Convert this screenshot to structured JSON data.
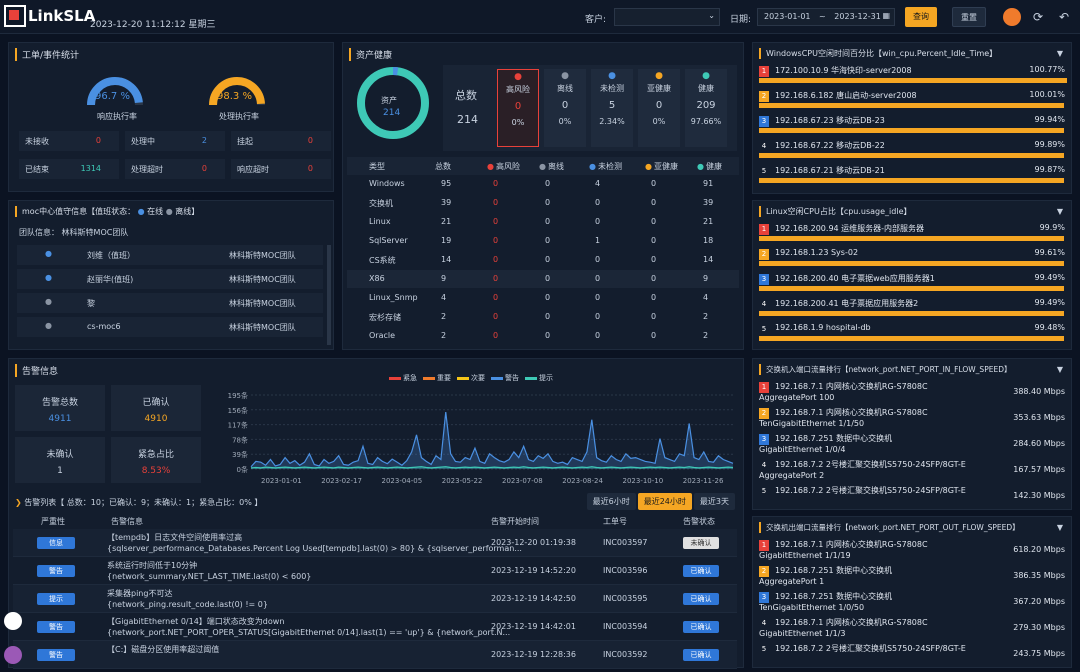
{
  "header": {
    "logo": "LinkSLA",
    "datetime": "2023-12-20 11:12:12 星期三",
    "customer_label": "客户:",
    "customer_value": "",
    "date_label": "日期:",
    "date_from": "2023-01-01",
    "date_sep": "~",
    "date_to": "2023-12-31",
    "query": "查询",
    "reset": "重置"
  },
  "work": {
    "title": "工单/事件统计",
    "g1": {
      "pct": "96.7 %",
      "label": "响应执行率",
      "value": 0.967,
      "color": "#4a90e2"
    },
    "g2": {
      "pct": "98.3 %",
      "label": "处理执行率",
      "value": 0.983,
      "color": "#f5a623"
    },
    "cells": [
      {
        "l": "未接收",
        "v": "0",
        "c": "#e8413a"
      },
      {
        "l": "处理中",
        "v": "2",
        "c": "#4a90e2"
      },
      {
        "l": "挂起",
        "v": "0",
        "c": "#e8413a"
      },
      {
        "l": "已结束",
        "v": "1314",
        "c": "#3ec9b6"
      },
      {
        "l": "处理超时",
        "v": "0",
        "c": "#e8413a"
      },
      {
        "l": "响应超时",
        "v": "0",
        "c": "#e8413a"
      }
    ]
  },
  "moc": {
    "title": "moc中心值守信息",
    "team": "团队信息： 林科斯特MOC团队",
    "legend_prefix": "值班状态：",
    "online": "在线",
    "offline": "离线",
    "rows": [
      {
        "name": "刘维（值班）",
        "team": "林科斯特MOC团队",
        "status": "online"
      },
      {
        "name": "赵丽华(值班)",
        "team": "林科斯特MOC团队",
        "status": "online"
      },
      {
        "name": "黎",
        "team": "林科斯特MOC团队",
        "status": "offline"
      },
      {
        "name": "cs-moc6",
        "team": "林科斯特MOC团队",
        "status": "offline"
      }
    ]
  },
  "asset": {
    "title": "资产健康",
    "donut_label": "资产",
    "donut_value": "214",
    "total_label": "总数",
    "total": "214",
    "stats": [
      {
        "l": "高风险",
        "v": "0",
        "p": "0%",
        "c": "#e8413a"
      },
      {
        "l": "离线",
        "v": "0",
        "p": "0%",
        "c": "#8a94a3"
      },
      {
        "l": "未检测",
        "v": "5",
        "p": "2.34%",
        "c": "#4a90e2"
      },
      {
        "l": "亚健康",
        "v": "0",
        "p": "0%",
        "c": "#f5a623"
      },
      {
        "l": "健康",
        "v": "209",
        "p": "97.66%",
        "c": "#3ec9b6"
      }
    ],
    "headers": [
      "类型",
      "总数",
      "高风险",
      "离线",
      "未检测",
      "亚健康",
      "健康"
    ],
    "rows": [
      [
        "Windows",
        "95",
        "0",
        "0",
        "4",
        "0",
        "91"
      ],
      [
        "交换机",
        "39",
        "0",
        "0",
        "0",
        "0",
        "39"
      ],
      [
        "Linux",
        "21",
        "0",
        "0",
        "0",
        "0",
        "21"
      ],
      [
        "SqlServer",
        "19",
        "0",
        "0",
        "1",
        "0",
        "18"
      ],
      [
        "CS系统",
        "14",
        "0",
        "0",
        "0",
        "0",
        "14"
      ],
      [
        "X86",
        "9",
        "0",
        "0",
        "0",
        "0",
        "9"
      ],
      [
        "Linux_Snmp",
        "4",
        "0",
        "0",
        "0",
        "0",
        "4"
      ],
      [
        "宏杉存储",
        "2",
        "0",
        "0",
        "0",
        "0",
        "2"
      ],
      [
        "Oracle",
        "2",
        "0",
        "0",
        "0",
        "0",
        "2"
      ]
    ]
  },
  "alarm": {
    "title": "告警信息",
    "cards": [
      {
        "l": "告警总数",
        "v": "4911",
        "c": "#4a90e2"
      },
      {
        "l": "已确认",
        "v": "4910",
        "c": "#f5a623"
      },
      {
        "l": "未确认",
        "v": "1",
        "c": "#c8d2e0"
      },
      {
        "l": "紧急占比",
        "v": "8.53%",
        "c": "#e8413a"
      }
    ],
    "list_title": "告警列表【 总数：10；已确认：9；未确认：1；紧急占比：0% 】",
    "tabs": [
      "最近6小时",
      "最近24小时",
      "最近3天"
    ],
    "headers": [
      "严重性",
      "告警信息",
      "告警开始时间",
      "工单号",
      "告警状态"
    ],
    "rows": [
      {
        "sev": "信息",
        "l1": "【tempdb】日志文件空间使用率过高",
        "l2": "{sqlserver_performance_Databases.Percent Log Used[tempdb].last(0) > 80} & {sqlserver_performan...",
        "t": "2023-12-20 01:19:38",
        "no": "INC003597",
        "s": "未确认",
        "sc": "#e0e0e0",
        "stc": "#333"
      },
      {
        "sev": "警告",
        "l1": "系统运行时间低于10分钟",
        "l2": "{network_summary.NET_LAST_TIME.last(0) < 600}",
        "t": "2023-12-19 14:52:20",
        "no": "INC003596",
        "s": "已确认",
        "sc": "#2f77d8",
        "stc": "#fff"
      },
      {
        "sev": "提示",
        "l1": "采集器ping不可达",
        "l2": "{network_ping.result_code.last(0) != 0}",
        "t": "2023-12-19 14:42:50",
        "no": "INC003595",
        "s": "已确认",
        "sc": "#2f77d8",
        "stc": "#fff"
      },
      {
        "sev": "警告",
        "l1": "【GigabitEthernet 0/14】端口状态改变为down",
        "l2": "{network_port.NET_PORT_OPER_STATUS[GigabitEthernet 0/14].last(1) == 'up'} & {network_port.N...",
        "t": "2023-12-19 14:42:01",
        "no": "INC003594",
        "s": "已确认",
        "sc": "#2f77d8",
        "stc": "#fff"
      },
      {
        "sev": "警告",
        "l1": "【C:】磁盘分区使用率超过阈值",
        "l2": "",
        "t": "2023-12-19 12:28:36",
        "no": "INC003592",
        "s": "已确认",
        "sc": "#2f77d8",
        "stc": "#fff"
      }
    ]
  },
  "chart_data": {
    "type": "line",
    "legend": [
      {
        "name": "紧急",
        "color": "#e8413a"
      },
      {
        "name": "重要",
        "color": "#f07b2c"
      },
      {
        "name": "次要",
        "color": "#f5c518"
      },
      {
        "name": "警告",
        "color": "#4a90e2"
      },
      {
        "name": "提示",
        "color": "#3ec9b6"
      }
    ],
    "yticks": [
      "195条",
      "156条",
      "117条",
      "78条",
      "39条",
      "0条"
    ],
    "ylim": [
      0,
      195
    ],
    "xticks": [
      "2023-01-01",
      "2023-02-17",
      "2023-04-05",
      "2023-05-22",
      "2023-07-08",
      "2023-08-24",
      "2023-10-10",
      "2023-11-26"
    ],
    "series": [
      {
        "name": "警告",
        "color": "#4a90e2",
        "values": [
          6,
          20,
          18,
          10,
          25,
          8,
          12,
          30,
          15,
          22,
          10,
          18,
          40,
          12,
          8,
          25,
          15,
          20,
          35,
          12,
          10,
          18,
          22,
          60,
          15,
          12,
          30,
          20,
          14,
          26,
          18,
          10,
          22,
          45,
          90,
          30,
          20,
          12,
          35,
          25,
          150,
          40,
          20,
          18,
          30,
          25,
          55,
          20,
          15,
          40,
          30,
          22,
          18,
          25,
          45,
          30,
          60,
          25,
          20,
          35,
          28,
          40,
          20,
          15,
          18,
          12,
          30,
          25,
          20,
          45,
          130,
          30,
          22,
          18,
          35,
          25,
          20,
          40,
          28,
          30,
          25,
          20,
          18,
          15,
          80,
          30,
          25,
          20,
          40,
          35,
          120,
          30,
          25,
          45,
          20,
          18,
          35,
          25,
          20,
          15
        ]
      },
      {
        "name": "提示",
        "color": "#3ec9b6",
        "values": [
          3,
          4,
          3,
          5,
          4,
          3,
          4,
          5,
          4,
          3,
          4,
          5,
          4,
          3,
          4,
          5,
          4,
          3,
          5,
          4,
          3,
          4,
          5,
          4,
          3,
          4,
          5,
          4,
          3,
          4,
          5,
          4,
          3,
          4,
          5,
          6,
          4,
          3,
          4,
          5,
          6,
          4,
          3,
          4,
          5,
          4,
          5,
          4,
          3,
          4,
          5,
          4,
          3,
          4,
          5,
          4,
          6,
          4,
          3,
          4,
          5,
          4,
          3,
          4,
          5,
          4,
          3,
          4,
          5,
          4,
          6,
          4,
          3,
          4,
          5,
          4,
          3,
          4,
          5,
          4,
          3,
          4,
          5,
          4,
          5,
          4,
          3,
          4,
          5,
          4,
          6,
          4,
          3,
          4,
          5,
          4,
          3,
          4,
          5,
          4
        ]
      }
    ]
  },
  "cpu_win": {
    "title": "WindowsCPU空闲时间百分比【win_cpu.Percent_Idle_Time】",
    "rows": [
      {
        "n": "172.100.10.9 华海快印-server2008",
        "p": "100.77%",
        "v": 1.0
      },
      {
        "n": "192.168.6.182 唐山启动-server2008",
        "p": "100.01%",
        "v": 0.99
      },
      {
        "n": "192.168.67.23 移动云DB-23",
        "p": "99.94%",
        "v": 0.99
      },
      {
        "n": "192.168.67.22 移动云DB-22",
        "p": "99.89%",
        "v": 0.99
      },
      {
        "n": "192.168.67.21 移动云DB-21",
        "p": "99.87%",
        "v": 0.99
      }
    ]
  },
  "cpu_linux": {
    "title": "Linux空闲CPU占比【cpu.usage_idle】",
    "rows": [
      {
        "n": "192.168.200.94 运维服务器-内部服务器",
        "p": "99.9%",
        "v": 0.99
      },
      {
        "n": "192.168.1.23 Sys-02",
        "p": "99.61%",
        "v": 0.99
      },
      {
        "n": "192.168.200.40 电子票据web应用服务器1",
        "p": "99.49%",
        "v": 0.99
      },
      {
        "n": "192.168.200.41 电子票据应用服务器2",
        "p": "99.49%",
        "v": 0.99
      },
      {
        "n": "192.168.1.9 hospital-db",
        "p": "99.48%",
        "v": 0.99
      }
    ]
  },
  "net_in": {
    "title": "交换机入端口流量排行【network_port.NET_PORT_IN_FLOW_SPEED】",
    "rows": [
      {
        "n": "192.168.7.1 内网核心交换机RG-S7808C",
        "n2": "AggregatePort 100",
        "p": "388.40 Mbps"
      },
      {
        "n": "192.168.7.1 内网核心交换机RG-S7808C",
        "n2": "TenGigabitEthernet 1/1/50",
        "p": "353.63 Mbps"
      },
      {
        "n": "192.168.7.251 数据中心交换机",
        "n2": "GigabitEthernet 1/0/4",
        "p": "284.60 Mbps"
      },
      {
        "n": "192.168.7.2 2号楼汇聚交换机S5750-24SFP/8GT-E",
        "n2": "AggregatePort 2",
        "p": "167.57 Mbps"
      },
      {
        "n": "192.168.7.2 2号楼汇聚交换机S5750-24SFP/8GT-E",
        "n2": "",
        "p": "142.30 Mbps"
      }
    ]
  },
  "net_out": {
    "title": "交换机出端口流量排行【network_port.NET_PORT_OUT_FLOW_SPEED】",
    "rows": [
      {
        "n": "192.168.7.1 内网核心交换机RG-S7808C",
        "n2": "GigabitEthernet 1/1/19",
        "p": "618.20 Mbps"
      },
      {
        "n": "192.168.7.251 数据中心交换机",
        "n2": "AggregatePort 1",
        "p": "386.35 Mbps"
      },
      {
        "n": "192.168.7.251 数据中心交换机",
        "n2": "TenGigabitEthernet 1/0/50",
        "p": "367.20 Mbps"
      },
      {
        "n": "192.168.7.1 内网核心交换机RG-S7808C",
        "n2": "GigabitEthernet 1/1/3",
        "p": "279.30 Mbps"
      },
      {
        "n": "192.168.7.2 2号楼汇聚交换机S5750-24SFP/8GT-E",
        "n2": "",
        "p": "243.75 Mbps"
      }
    ]
  }
}
